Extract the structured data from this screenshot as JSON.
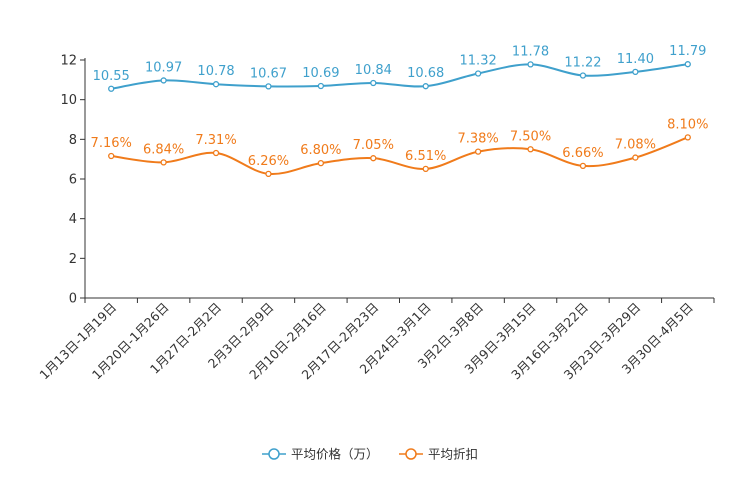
{
  "chart_data": {
    "type": "line",
    "title": "",
    "xlabel": "",
    "ylabel": "",
    "ylim": [
      0,
      12
    ],
    "yticks": [
      0,
      2,
      4,
      6,
      8,
      10,
      12
    ],
    "grid": false,
    "legend_position": "bottom-center",
    "categories": [
      "1月13日-1月19日",
      "1月20日-1月26日",
      "1月27日-2月2日",
      "2月3日-2月9日",
      "2月10日-2月16日",
      "2月17日-2月23日",
      "2月24日-3月1日",
      "3月2日-3月8日",
      "3月9日-3月15日",
      "3月16日-3月22日",
      "3月23日-3月29日",
      "3月30日-4月5日"
    ],
    "series": [
      {
        "name": "平均价格（万）",
        "color": "#3fa0cc",
        "values": [
          10.55,
          10.97,
          10.78,
          10.67,
          10.69,
          10.84,
          10.68,
          11.32,
          11.78,
          11.22,
          11.4,
          11.79
        ],
        "labels": [
          "10.55",
          "10.97",
          "10.78",
          "10.67",
          "10.69",
          "10.84",
          "10.68",
          "11.32",
          "11.78",
          "11.22",
          "11.40",
          "11.79"
        ]
      },
      {
        "name": "平均折扣",
        "color": "#f07b1b",
        "values": [
          7.16,
          6.84,
          7.31,
          6.26,
          6.8,
          7.05,
          6.51,
          7.38,
          7.5,
          6.66,
          7.08,
          8.1
        ],
        "labels": [
          "7.16%",
          "6.84%",
          "7.31%",
          "6.26%",
          "6.80%",
          "7.05%",
          "6.51%",
          "7.38%",
          "7.50%",
          "6.66%",
          "7.08%",
          "8.10%"
        ]
      }
    ]
  }
}
